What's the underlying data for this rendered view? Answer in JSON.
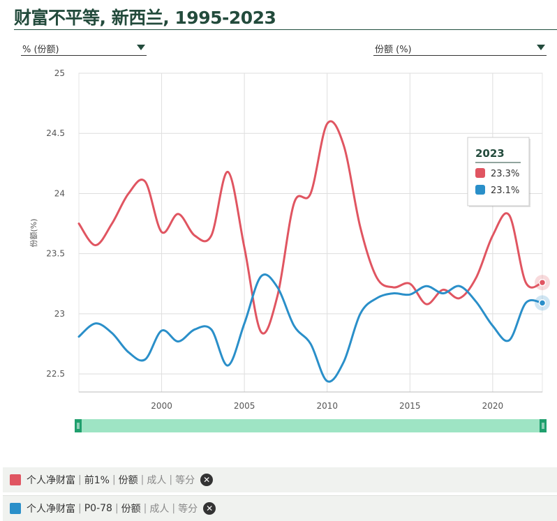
{
  "title": "财富不平等, 新西兰, 1995-2023",
  "selectors": {
    "left": "% (份额)",
    "right": "份额 (%)"
  },
  "chart_data": {
    "type": "line",
    "ylabel": "份额(%)",
    "xlabel": "",
    "xlim": [
      1995,
      2023
    ],
    "ylim": [
      22.35,
      25
    ],
    "yticks": [
      22.5,
      23,
      23.5,
      24,
      24.5,
      25
    ],
    "xticks": [
      2000,
      2005,
      2010,
      2015,
      2020
    ],
    "grid": true,
    "x": [
      1995,
      1996,
      1997,
      1998,
      1999,
      2000,
      2001,
      2002,
      2003,
      2004,
      2005,
      2006,
      2007,
      2008,
      2009,
      2010,
      2011,
      2012,
      2013,
      2014,
      2015,
      2016,
      2017,
      2018,
      2019,
      2020,
      2021,
      2022,
      2023
    ],
    "series": [
      {
        "name": "个人净财富 | 前1% | 份额 | 成人 | 等分",
        "color": "#e05561",
        "values": [
          23.75,
          23.57,
          23.75,
          24.0,
          24.1,
          23.68,
          23.83,
          23.65,
          23.65,
          24.18,
          23.55,
          22.85,
          23.15,
          23.92,
          24.0,
          24.58,
          24.4,
          23.72,
          23.3,
          23.22,
          23.25,
          23.08,
          23.2,
          23.13,
          23.3,
          23.65,
          23.82,
          23.26,
          23.26
        ]
      },
      {
        "name": "个人净财富 | P0-78 | 份额 | 成人 | 等分",
        "color": "#2a8fc9",
        "values": [
          22.81,
          22.92,
          22.84,
          22.68,
          22.62,
          22.86,
          22.77,
          22.87,
          22.87,
          22.57,
          22.92,
          23.31,
          23.22,
          22.9,
          22.75,
          22.44,
          22.6,
          23.0,
          23.13,
          23.17,
          23.16,
          23.23,
          23.17,
          23.23,
          23.1,
          22.9,
          22.78,
          23.09,
          23.09
        ]
      }
    ],
    "tooltip": {
      "year": "2023",
      "values": [
        "23.3%",
        "23.1%"
      ]
    }
  },
  "legend": [
    {
      "color": "#e05561",
      "name": "个人净财富",
      "group": "前1%",
      "measure": "份额",
      "unit": "成人",
      "method": "等分"
    },
    {
      "color": "#2a8fc9",
      "name": "个人净财富",
      "group": "P0-78",
      "measure": "份额",
      "unit": "成人",
      "method": "等分"
    }
  ],
  "icons": {
    "dropdown": "caret-down-icon",
    "remove": "close-circle-icon",
    "slider_handle": "grip-icon"
  },
  "colors": {
    "title": "#234b3c",
    "slider": "#9ee4c4",
    "slider_handle": "#1f9f6d"
  }
}
